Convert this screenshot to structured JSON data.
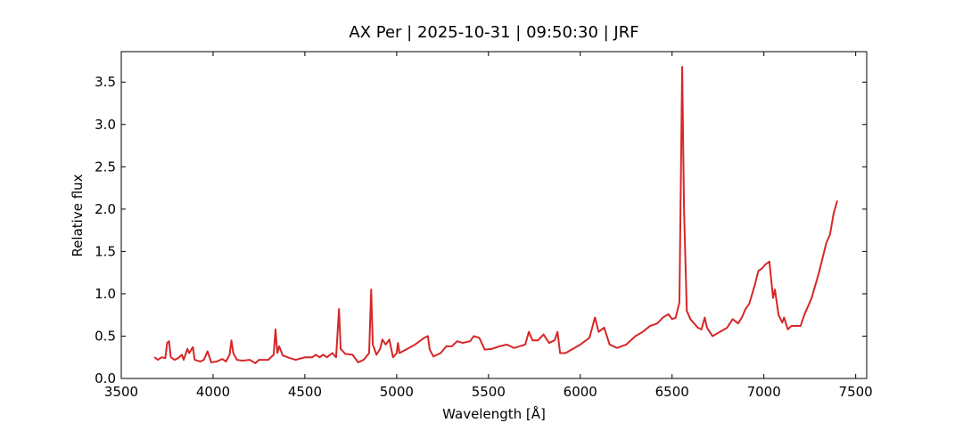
{
  "chart_data": {
    "type": "line",
    "title": "AX Per | 2025-10-31 | 09:50:30 | JRF",
    "x_label": "Wavelength [Å]",
    "y_label": "Relative flux",
    "xlim": [
      3500,
      7560
    ],
    "ylim": [
      0,
      3.86
    ],
    "xticks": [
      3500,
      4000,
      4500,
      5000,
      5500,
      6000,
      6500,
      7000,
      7500
    ],
    "yticks": [
      {
        "value": 0,
        "label": "0.0"
      },
      0.5,
      {
        "value": 1,
        "label": "1.0"
      },
      1.5,
      {
        "value": 2,
        "label": "2.0"
      },
      2.5,
      {
        "value": 3,
        "label": "3.0"
      },
      3.5
    ],
    "x": [
      3680,
      3700,
      3720,
      3740,
      3750,
      3760,
      3770,
      3790,
      3810,
      3830,
      3840,
      3860,
      3870,
      3890,
      3900,
      3930,
      3950,
      3970,
      3990,
      4020,
      4050,
      4070,
      4090,
      4100,
      4110,
      4130,
      4160,
      4200,
      4230,
      4250,
      4300,
      4330,
      4340,
      4350,
      4360,
      4380,
      4420,
      4450,
      4500,
      4540,
      4560,
      4580,
      4600,
      4620,
      4650,
      4670,
      4686,
      4695,
      4720,
      4760,
      4790,
      4820,
      4850,
      4861,
      4870,
      4890,
      4910,
      4922,
      4940,
      4960,
      4980,
      5000,
      5007,
      5015,
      5050,
      5100,
      5150,
      5170,
      5180,
      5200,
      5240,
      5270,
      5300,
      5330,
      5360,
      5400,
      5420,
      5450,
      5480,
      5520,
      5560,
      5600,
      5640,
      5700,
      5720,
      5740,
      5770,
      5800,
      5830,
      5860,
      5876,
      5890,
      5920,
      5960,
      6000,
      6050,
      6080,
      6100,
      6130,
      6160,
      6200,
      6250,
      6300,
      6340,
      6380,
      6420,
      6450,
      6480,
      6500,
      6520,
      6540,
      6555,
      6565,
      6580,
      6600,
      6640,
      6660,
      6678,
      6690,
      6720,
      6760,
      6800,
      6830,
      6860,
      6880,
      6900,
      6920,
      6950,
      6970,
      6990,
      7010,
      7030,
      7050,
      7060,
      7080,
      7100,
      7110,
      7130,
      7150,
      7200,
      7220,
      7260,
      7300,
      7340,
      7360,
      7380,
      7400
    ],
    "series": [
      {
        "name": "AX Per",
        "color": "#d62728",
        "values": [
          0.25,
          0.22,
          0.25,
          0.24,
          0.42,
          0.44,
          0.25,
          0.22,
          0.24,
          0.28,
          0.22,
          0.35,
          0.3,
          0.37,
          0.22,
          0.2,
          0.22,
          0.32,
          0.19,
          0.2,
          0.23,
          0.2,
          0.28,
          0.45,
          0.3,
          0.22,
          0.21,
          0.22,
          0.18,
          0.22,
          0.22,
          0.28,
          0.58,
          0.3,
          0.38,
          0.27,
          0.24,
          0.22,
          0.25,
          0.25,
          0.28,
          0.25,
          0.28,
          0.25,
          0.3,
          0.25,
          0.82,
          0.35,
          0.29,
          0.28,
          0.19,
          0.22,
          0.3,
          1.05,
          0.4,
          0.28,
          0.35,
          0.46,
          0.4,
          0.46,
          0.25,
          0.3,
          0.42,
          0.3,
          0.34,
          0.4,
          0.48,
          0.5,
          0.34,
          0.26,
          0.3,
          0.38,
          0.38,
          0.44,
          0.42,
          0.44,
          0.5,
          0.48,
          0.34,
          0.35,
          0.38,
          0.4,
          0.36,
          0.4,
          0.55,
          0.45,
          0.45,
          0.52,
          0.42,
          0.45,
          0.55,
          0.3,
          0.3,
          0.35,
          0.4,
          0.48,
          0.72,
          0.55,
          0.6,
          0.4,
          0.36,
          0.4,
          0.5,
          0.55,
          0.62,
          0.65,
          0.72,
          0.76,
          0.7,
          0.72,
          0.9,
          3.68,
          2.0,
          0.8,
          0.7,
          0.6,
          0.58,
          0.72,
          0.6,
          0.5,
          0.55,
          0.6,
          0.7,
          0.65,
          0.72,
          0.82,
          0.88,
          1.1,
          1.27,
          1.3,
          1.35,
          1.38,
          0.95,
          1.05,
          0.75,
          0.66,
          0.72,
          0.58,
          0.62,
          0.62,
          0.75,
          0.95,
          1.25,
          1.6,
          1.7,
          1.95,
          2.1
        ]
      }
    ]
  }
}
